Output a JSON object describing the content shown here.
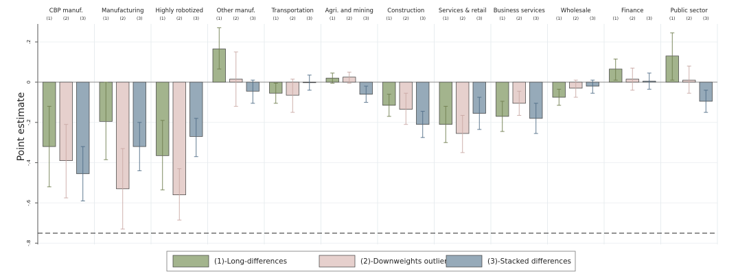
{
  "chart_data": {
    "type": "bar",
    "ylabel": "Point estimate",
    "ylim": [
      -0.8,
      0.27
    ],
    "yticks": [
      0.2,
      0,
      -0.2,
      -0.4,
      -0.6,
      -0.8
    ],
    "ytick_labels": [
      ".2",
      "0",
      "-.2",
      "-.4",
      "-.6",
      "-.8"
    ],
    "reference_line": -0.75,
    "sub_labels": [
      "(1)",
      "(2)",
      "(3)"
    ],
    "categories": [
      "CBP manuf.",
      "Manufacturing",
      "Highly robotized",
      "Other manuf.",
      "Transportation",
      "Agri. and mining",
      "Construction",
      "Services & retail",
      "Business services",
      "Wholesale",
      "Finance",
      "Public sector"
    ],
    "series": [
      {
        "name": "(1)-Long-differences",
        "color": "#a3b48d",
        "values": [
          -0.32,
          -0.195,
          -0.365,
          0.165,
          -0.055,
          0.02,
          -0.115,
          -0.21,
          -0.17,
          -0.075,
          0.065,
          0.13
        ],
        "ci_low": [
          -0.52,
          -0.385,
          -0.535,
          0.065,
          -0.105,
          -0.005,
          -0.17,
          -0.3,
          -0.245,
          -0.115,
          0.01,
          0.01
        ],
        "ci_high": [
          -0.12,
          0.0,
          -0.19,
          0.27,
          -0.005,
          0.045,
          -0.06,
          -0.12,
          -0.095,
          -0.035,
          0.115,
          0.245
        ]
      },
      {
        "name": "(2)-Downweights outliers",
        "color": "#e6d0cd",
        "values": [
          -0.39,
          -0.53,
          -0.56,
          0.015,
          -0.065,
          0.025,
          -0.135,
          -0.255,
          -0.105,
          -0.03,
          0.015,
          0.01
        ],
        "ci_low": [
          -0.575,
          -0.73,
          -0.685,
          -0.12,
          -0.15,
          -0.005,
          -0.21,
          -0.35,
          -0.165,
          -0.075,
          -0.04,
          -0.055
        ],
        "ci_high": [
          -0.21,
          -0.33,
          -0.43,
          0.15,
          0.015,
          0.05,
          -0.055,
          -0.165,
          -0.045,
          0.01,
          0.07,
          0.08
        ]
      },
      {
        "name": "(3)-Stacked differences",
        "color": "#96aab9",
        "values": [
          -0.455,
          -0.32,
          -0.27,
          -0.045,
          0.0,
          -0.06,
          -0.21,
          -0.155,
          -0.18,
          -0.02,
          0.005,
          -0.095
        ],
        "ci_low": [
          -0.59,
          -0.44,
          -0.37,
          -0.105,
          -0.04,
          -0.1,
          -0.275,
          -0.235,
          -0.255,
          -0.055,
          -0.035,
          -0.15
        ],
        "ci_high": [
          -0.32,
          -0.2,
          -0.18,
          0.01,
          0.035,
          -0.02,
          -0.145,
          -0.075,
          -0.105,
          0.01,
          0.045,
          -0.04
        ]
      }
    ],
    "error_bar_color": "#3a3a3a",
    "grid": true,
    "legend_position": "bottom"
  }
}
